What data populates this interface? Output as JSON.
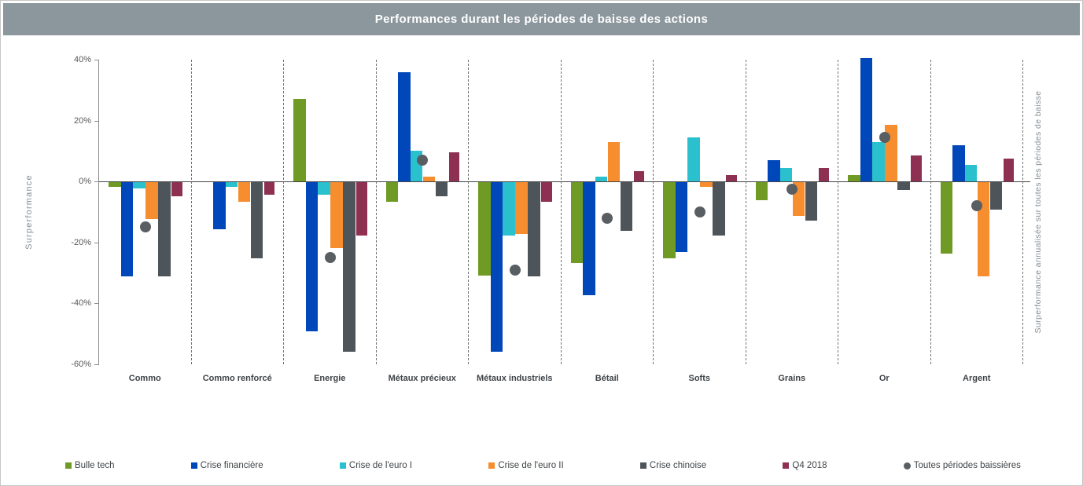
{
  "header": {
    "title": "Performances durant les périodes de baisse des actions",
    "bg_color": "#8c979d",
    "text_color": "#ffffff"
  },
  "chart_data": {
    "type": "bar",
    "title": "Performances durant les périodes de baisse des actions",
    "ylabel": "Surperformance",
    "ylabel_right": "Surperformance annualisée sur toutes les périodes de baisse",
    "unit": "%",
    "ylim": [
      -60,
      40
    ],
    "y_ticks": [
      40,
      20,
      0,
      -20,
      -40,
      -60
    ],
    "y_tick_labels": [
      "40%",
      "20%",
      "0%",
      "-20%",
      "-40%",
      "-60%"
    ],
    "grid": "vertical dashed separators between categories, solid zero line",
    "legend_position": "bottom",
    "categories": [
      "Commo",
      "Commo renforcé",
      "Energie",
      "Métaux précieux",
      "Métaux industriels",
      "Bétail",
      "Softs",
      "Grains",
      "Or",
      "Argent"
    ],
    "series": [
      {
        "name": "Bulle tech",
        "marker": "square",
        "color": "#6f9a23",
        "values": [
          -1.5,
          null,
          27,
          -6.5,
          -30.5,
          -26.5,
          -25,
          -6,
          2,
          -23.5
        ]
      },
      {
        "name": "Crise financière",
        "marker": "square",
        "color": "#0047ba",
        "values": [
          -31,
          -15.5,
          -49,
          36,
          -55.5,
          -37,
          -23,
          7,
          40.5,
          12
        ]
      },
      {
        "name": "Crise de l'euro I",
        "marker": "square",
        "color": "#2bc0ce",
        "values": [
          -2,
          -1.5,
          -4,
          10,
          -17.5,
          1.5,
          14.5,
          4.5,
          13,
          5.5
        ]
      },
      {
        "name": "Crise de l'euro II",
        "marker": "square",
        "color": "#f68d2e",
        "values": [
          -12,
          -6.5,
          -21.5,
          1.5,
          -17,
          13,
          -1.5,
          -11,
          18.5,
          -31
        ]
      },
      {
        "name": "Crise chinoise",
        "marker": "square",
        "color": "#4e555a",
        "values": [
          -31,
          -25,
          -55.5,
          -4.5,
          -31,
          -16,
          -17.5,
          -12.5,
          -2.5,
          -9
        ]
      },
      {
        "name": "Q4 2018",
        "marker": "square",
        "color": "#8e3052",
        "values": [
          -4.5,
          -4,
          -17.5,
          9.5,
          -6.5,
          3.5,
          2,
          4.5,
          8.5,
          7.5
        ]
      },
      {
        "name": "Toutes périodes baissières",
        "marker": "circle",
        "color": "#595e62",
        "values": [
          -15,
          null,
          -25,
          7,
          -29,
          -12,
          -10,
          -2.5,
          14.5,
          -8
        ]
      }
    ]
  }
}
